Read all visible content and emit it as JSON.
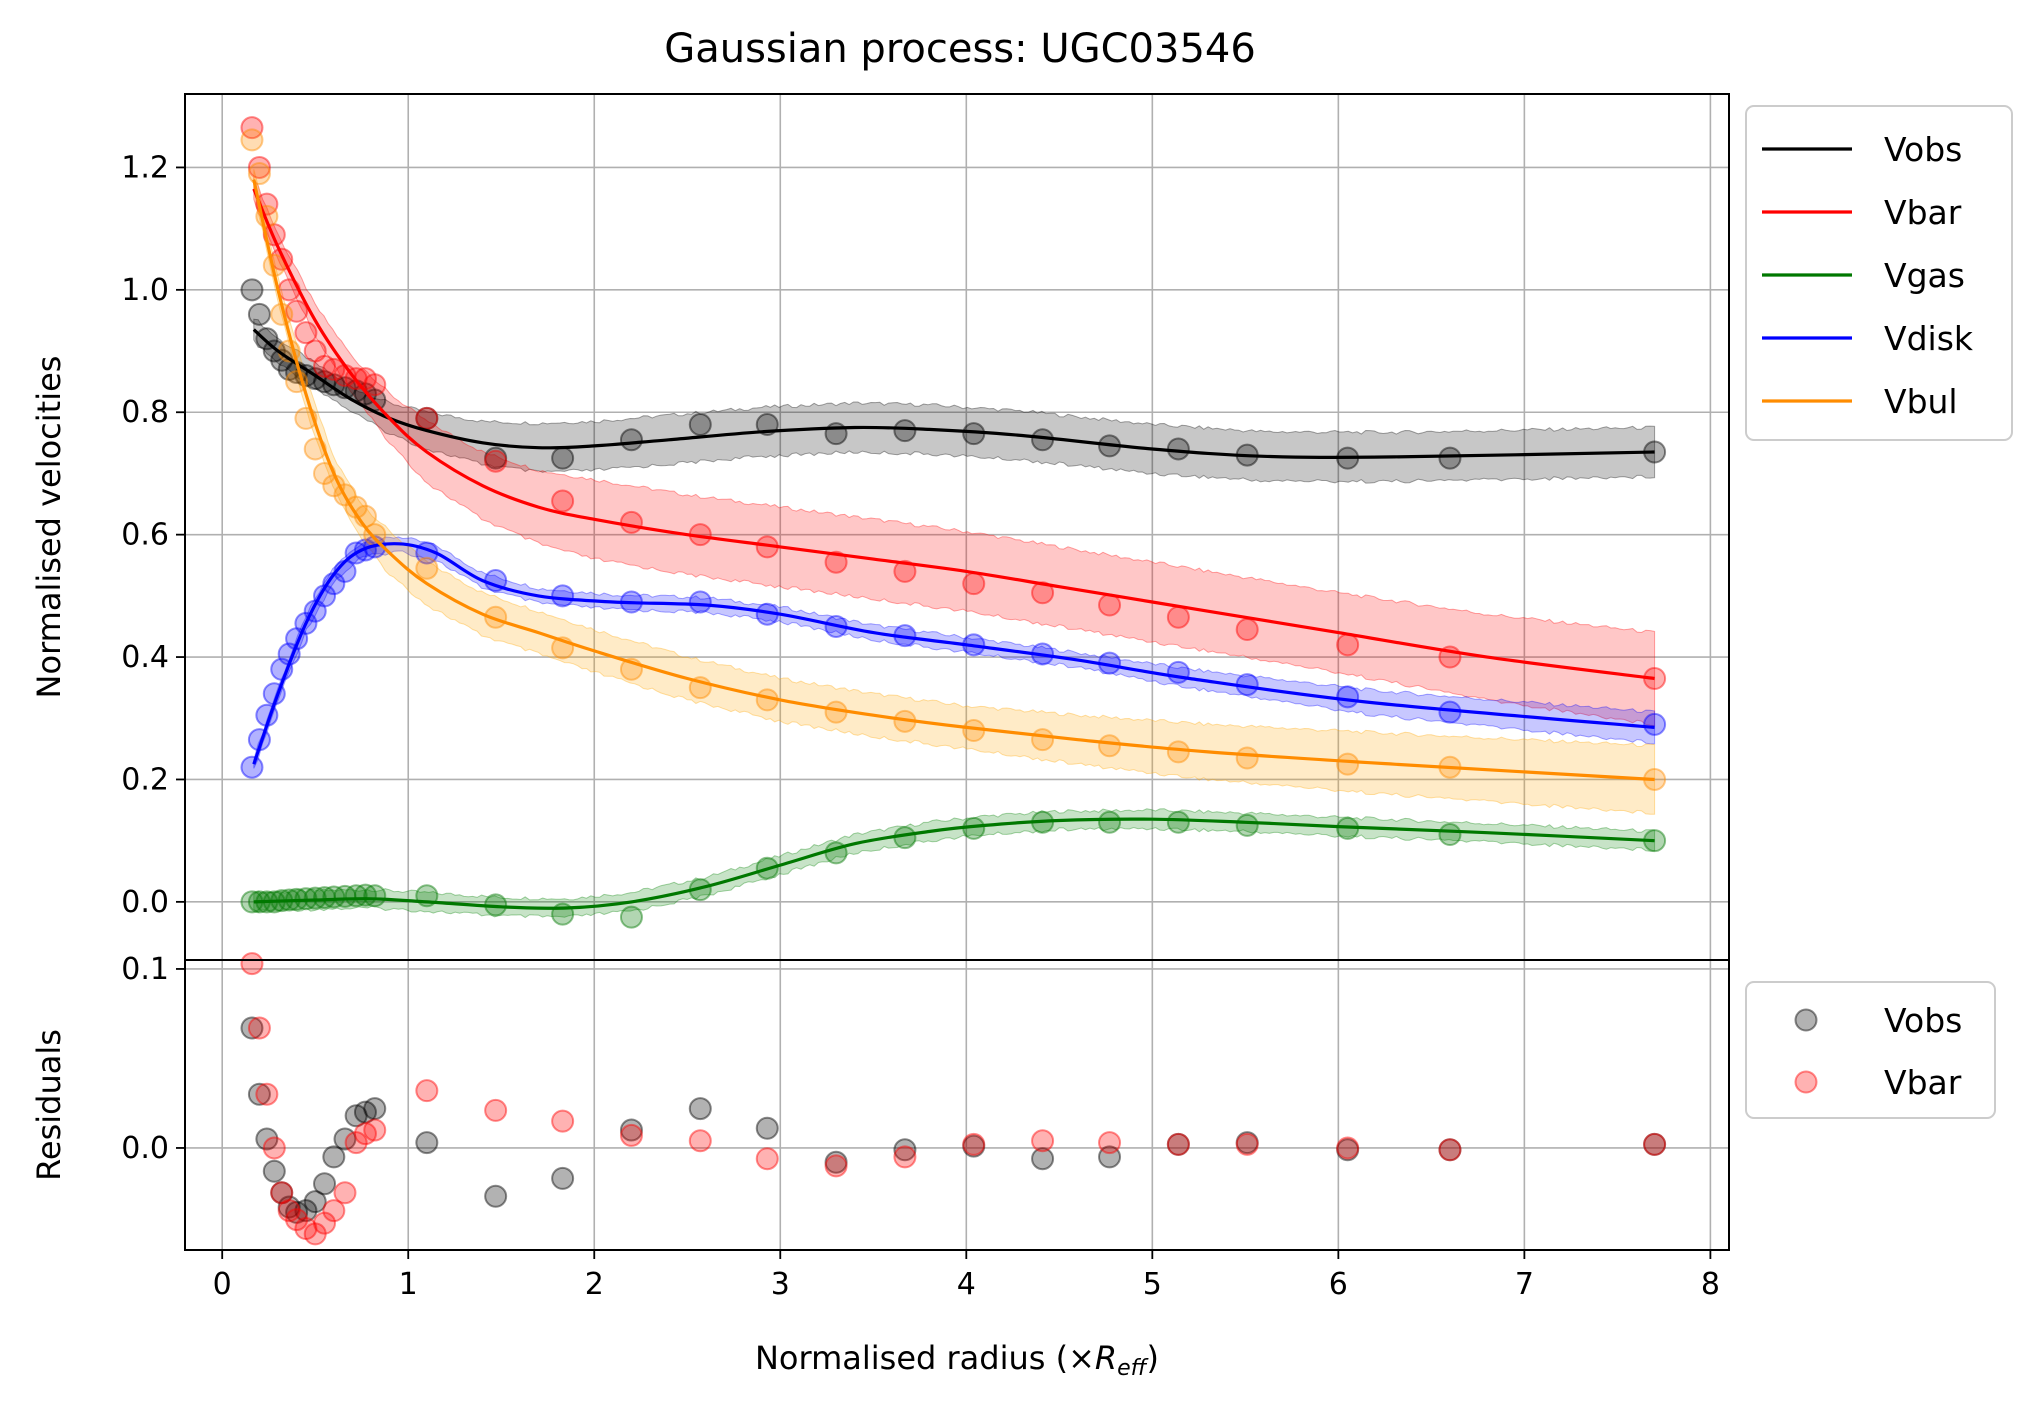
{
  "chart_data": {
    "type": "line",
    "title": "Gaussian process: UGC03546",
    "xlabel_prefix": "Normalised radius (×",
    "xlabel_symbol": "R",
    "xlabel_subscript": "eff",
    "xlabel_suffix": ")",
    "xlim": [
      -0.2,
      8.1
    ],
    "xticks": [
      0,
      1,
      2,
      3,
      4,
      5,
      6,
      7,
      8
    ],
    "xtick_labels": [
      "0",
      "1",
      "2",
      "3",
      "4",
      "5",
      "6",
      "7",
      "8"
    ],
    "grid": true,
    "top_panel": {
      "ylabel": "Normalised velocities",
      "ylim": [
        -0.095,
        1.32
      ],
      "yticks": [
        0.0,
        0.2,
        0.4,
        0.6,
        0.8,
        1.0,
        1.2
      ],
      "ytick_labels": [
        "0.0",
        "0.2",
        "0.4",
        "0.6",
        "0.8",
        "1.0",
        "1.2"
      ],
      "legend_position": "upper-right-outside",
      "series": [
        {
          "name": "Vobs",
          "color": "#000000",
          "band_color": "#000000",
          "band_halfwidth": [
            0.02,
            0.02,
            0.02,
            0.02,
            0.025,
            0.03,
            0.035,
            0.04,
            0.04,
            0.04,
            0.04,
            0.04,
            0.04,
            0.04,
            0.04,
            0.04,
            0.04,
            0.04
          ],
          "curve_x": [
            0.17,
            0.3,
            0.5,
            0.7,
            0.9,
            1.1,
            1.4,
            1.7,
            2.0,
            2.4,
            2.9,
            3.4,
            3.8,
            4.3,
            5.0,
            5.6,
            6.3,
            7.7
          ],
          "curve_y": [
            0.935,
            0.9,
            0.86,
            0.82,
            0.79,
            0.77,
            0.75,
            0.742,
            0.745,
            0.755,
            0.768,
            0.775,
            0.772,
            0.762,
            0.74,
            0.728,
            0.727,
            0.735
          ],
          "points_x": [
            0.16,
            0.2,
            0.24,
            0.28,
            0.32,
            0.36,
            0.4,
            0.45,
            0.5,
            0.55,
            0.6,
            0.66,
            0.72,
            0.77,
            0.82,
            1.1,
            1.47,
            1.83,
            2.2,
            2.57,
            2.93,
            3.3,
            3.67,
            4.04,
            4.41,
            4.77,
            5.14,
            5.51,
            6.05,
            6.6,
            7.7
          ],
          "points_y": [
            1.0,
            0.96,
            0.92,
            0.9,
            0.885,
            0.87,
            0.865,
            0.86,
            0.855,
            0.85,
            0.845,
            0.84,
            0.835,
            0.83,
            0.82,
            0.79,
            0.725,
            0.725,
            0.755,
            0.78,
            0.78,
            0.765,
            0.77,
            0.765,
            0.755,
            0.745,
            0.74,
            0.73,
            0.725,
            0.725,
            0.735
          ]
        },
        {
          "name": "Vbar",
          "color": "#ff0000",
          "band_color": "#ff0000",
          "band_halfwidth": [
            0.02,
            0.02,
            0.025,
            0.03,
            0.04,
            0.05,
            0.055,
            0.06,
            0.065,
            0.065,
            0.065,
            0.065,
            0.065,
            0.065,
            0.065,
            0.065,
            0.065,
            0.07,
            0.075
          ],
          "curve_x": [
            0.17,
            0.3,
            0.5,
            0.7,
            0.9,
            1.1,
            1.4,
            1.7,
            2.0,
            2.5,
            3.0,
            3.5,
            4.0,
            4.5,
            5.0,
            5.5,
            6.0,
            6.8,
            7.7
          ],
          "curve_y": [
            1.165,
            1.07,
            0.95,
            0.86,
            0.79,
            0.735,
            0.68,
            0.645,
            0.625,
            0.6,
            0.58,
            0.56,
            0.54,
            0.515,
            0.49,
            0.465,
            0.44,
            0.4,
            0.365
          ],
          "points_x": [
            0.16,
            0.2,
            0.24,
            0.28,
            0.32,
            0.36,
            0.4,
            0.45,
            0.5,
            0.55,
            0.6,
            0.66,
            0.72,
            0.77,
            0.82,
            1.1,
            1.47,
            1.83,
            2.2,
            2.57,
            2.93,
            3.3,
            3.67,
            4.04,
            4.41,
            4.77,
            5.14,
            5.51,
            6.05,
            6.6,
            7.7
          ],
          "points_y": [
            1.265,
            1.2,
            1.14,
            1.09,
            1.05,
            1.0,
            0.965,
            0.93,
            0.9,
            0.875,
            0.87,
            0.86,
            0.855,
            0.855,
            0.845,
            0.79,
            0.72,
            0.655,
            0.62,
            0.6,
            0.58,
            0.555,
            0.54,
            0.52,
            0.505,
            0.485,
            0.465,
            0.445,
            0.42,
            0.4,
            0.365
          ]
        },
        {
          "name": "Vgas",
          "color": "#007800",
          "band_color": "#008000",
          "band_halfwidth": [
            0.015,
            0.015,
            0.015,
            0.015,
            0.015,
            0.015,
            0.015,
            0.015,
            0.015,
            0.015,
            0.015,
            0.015,
            0.015,
            0.015,
            0.015,
            0.015,
            0.015,
            0.015
          ],
          "curve_x": [
            0.17,
            0.5,
            0.8,
            1.1,
            1.5,
            1.85,
            2.2,
            2.6,
            3.0,
            3.4,
            3.8,
            4.1,
            4.5,
            5.0,
            5.5,
            6.0,
            6.8,
            7.7
          ],
          "curve_y": [
            0.0,
            0.003,
            0.005,
            0.0,
            -0.008,
            -0.01,
            0.0,
            0.025,
            0.06,
            0.095,
            0.115,
            0.125,
            0.133,
            0.135,
            0.13,
            0.123,
            0.113,
            0.1
          ],
          "points_x": [
            0.16,
            0.2,
            0.24,
            0.28,
            0.32,
            0.36,
            0.4,
            0.45,
            0.5,
            0.55,
            0.6,
            0.66,
            0.72,
            0.77,
            0.82,
            1.1,
            1.47,
            1.83,
            2.2,
            2.57,
            2.93,
            3.3,
            3.67,
            4.04,
            4.41,
            4.77,
            5.14,
            5.51,
            6.05,
            6.6,
            7.7
          ],
          "points_y": [
            0.0,
            0.0,
            0.0,
            0.0,
            0.002,
            0.003,
            0.004,
            0.005,
            0.006,
            0.007,
            0.008,
            0.009,
            0.01,
            0.011,
            0.01,
            0.01,
            -0.005,
            -0.02,
            -0.025,
            0.02,
            0.055,
            0.08,
            0.105,
            0.12,
            0.13,
            0.13,
            0.13,
            0.125,
            0.12,
            0.11,
            0.1
          ]
        },
        {
          "name": "Vdisk",
          "color": "#0000ff",
          "band_color": "#0000ff",
          "band_halfwidth": [
            0.01,
            0.01,
            0.012,
            0.012,
            0.012,
            0.012,
            0.012,
            0.012,
            0.012,
            0.012,
            0.012,
            0.012,
            0.012,
            0.012,
            0.012,
            0.015,
            0.02,
            0.025
          ],
          "curve_x": [
            0.17,
            0.3,
            0.45,
            0.6,
            0.75,
            0.95,
            1.15,
            1.4,
            1.7,
            2.1,
            2.6,
            3.0,
            3.5,
            4.0,
            4.6,
            5.2,
            6.2,
            7.7
          ],
          "curve_y": [
            0.225,
            0.34,
            0.455,
            0.535,
            0.575,
            0.585,
            0.57,
            0.525,
            0.5,
            0.49,
            0.485,
            0.47,
            0.44,
            0.42,
            0.395,
            0.365,
            0.325,
            0.285
          ],
          "points_x": [
            0.16,
            0.2,
            0.24,
            0.28,
            0.32,
            0.36,
            0.4,
            0.45,
            0.5,
            0.55,
            0.6,
            0.66,
            0.72,
            0.77,
            0.82,
            1.1,
            1.47,
            1.83,
            2.2,
            2.57,
            2.93,
            3.3,
            3.67,
            4.04,
            4.41,
            4.77,
            5.14,
            5.51,
            6.05,
            6.6,
            7.7
          ],
          "points_y": [
            0.22,
            0.265,
            0.305,
            0.34,
            0.38,
            0.405,
            0.43,
            0.455,
            0.475,
            0.5,
            0.52,
            0.54,
            0.57,
            0.575,
            0.58,
            0.57,
            0.525,
            0.5,
            0.49,
            0.49,
            0.47,
            0.45,
            0.435,
            0.42,
            0.405,
            0.39,
            0.375,
            0.355,
            0.335,
            0.31,
            0.29
          ]
        },
        {
          "name": "Vbul",
          "color": "#ff8c00",
          "band_color": "#ffa500",
          "band_halfwidth": [
            0.02,
            0.02,
            0.025,
            0.025,
            0.03,
            0.035,
            0.035,
            0.035,
            0.035,
            0.035,
            0.035,
            0.035,
            0.035,
            0.035,
            0.04,
            0.045,
            0.05,
            0.055
          ],
          "curve_x": [
            0.17,
            0.3,
            0.45,
            0.6,
            0.75,
            0.9,
            1.1,
            1.4,
            1.7,
            2.0,
            2.5,
            3.0,
            3.5,
            4.0,
            4.6,
            5.3,
            6.3,
            7.7
          ],
          "curve_y": [
            1.18,
            1.0,
            0.83,
            0.7,
            0.62,
            0.57,
            0.52,
            0.47,
            0.44,
            0.41,
            0.365,
            0.33,
            0.305,
            0.285,
            0.265,
            0.245,
            0.225,
            0.2
          ],
          "points_x": [
            0.16,
            0.2,
            0.24,
            0.28,
            0.32,
            0.36,
            0.4,
            0.45,
            0.5,
            0.55,
            0.6,
            0.66,
            0.72,
            0.77,
            0.82,
            1.1,
            1.47,
            1.83,
            2.2,
            2.57,
            2.93,
            3.3,
            3.67,
            4.04,
            4.41,
            4.77,
            5.14,
            5.51,
            6.05,
            6.6,
            7.7
          ],
          "points_y": [
            1.245,
            1.19,
            1.12,
            1.04,
            0.96,
            0.9,
            0.85,
            0.79,
            0.74,
            0.7,
            0.68,
            0.665,
            0.645,
            0.63,
            0.6,
            0.545,
            0.465,
            0.415,
            0.38,
            0.35,
            0.33,
            0.31,
            0.295,
            0.28,
            0.265,
            0.255,
            0.245,
            0.235,
            0.225,
            0.22,
            0.2
          ]
        }
      ]
    },
    "bottom_panel": {
      "ylabel": "Residuals",
      "ylim": [
        -0.057,
        0.105
      ],
      "yticks": [
        0.0,
        0.1
      ],
      "ytick_labels": [
        "0.0",
        "0.1"
      ],
      "legend_position": "upper-right-outside",
      "series": [
        {
          "name": "Vobs",
          "color": "#000000",
          "points_x": [
            0.16,
            0.2,
            0.24,
            0.28,
            0.32,
            0.36,
            0.4,
            0.45,
            0.5,
            0.55,
            0.6,
            0.66,
            0.72,
            0.77,
            0.82,
            1.1,
            1.47,
            1.83,
            2.2,
            2.57,
            2.93,
            3.3,
            3.67,
            4.04,
            4.41,
            4.77,
            5.14,
            5.51,
            6.05,
            6.6,
            7.7
          ],
          "points_y": [
            0.067,
            0.03,
            0.005,
            -0.013,
            -0.025,
            -0.033,
            -0.036,
            -0.035,
            -0.03,
            -0.02,
            -0.005,
            0.005,
            0.018,
            0.02,
            0.022,
            0.003,
            -0.027,
            -0.017,
            0.01,
            0.022,
            0.011,
            -0.008,
            -0.001,
            0.001,
            -0.006,
            -0.005,
            0.002,
            0.003,
            -0.001,
            -0.001,
            0.002
          ]
        },
        {
          "name": "Vbar",
          "color": "#ff0000",
          "points_x": [
            0.16,
            0.2,
            0.24,
            0.28,
            0.32,
            0.36,
            0.4,
            0.45,
            0.5,
            0.55,
            0.6,
            0.66,
            0.72,
            0.77,
            0.82,
            1.1,
            1.47,
            1.83,
            2.2,
            2.57,
            2.93,
            3.3,
            3.67,
            4.04,
            4.41,
            4.77,
            5.14,
            5.51,
            6.05,
            6.6,
            7.7
          ],
          "points_y": [
            0.103,
            0.067,
            0.03,
            0.0,
            -0.025,
            -0.035,
            -0.04,
            -0.045,
            -0.048,
            -0.042,
            -0.035,
            -0.025,
            0.003,
            0.008,
            0.01,
            0.032,
            0.021,
            0.015,
            0.007,
            0.004,
            -0.006,
            -0.01,
            -0.005,
            0.002,
            0.004,
            0.003,
            0.002,
            0.002,
            0.0,
            -0.001,
            0.002
          ]
        }
      ]
    }
  }
}
